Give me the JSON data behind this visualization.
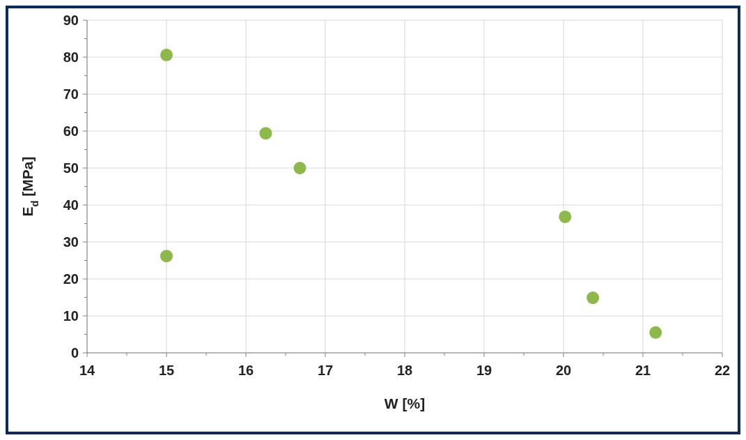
{
  "chart_data": {
    "type": "scatter",
    "xlabel": "W   [%]",
    "ylabel": "E$_{d}$   [MPa]",
    "x": [
      15.0,
      15.0,
      16.25,
      16.68,
      20.02,
      20.37,
      21.16
    ],
    "series": [
      {
        "color": "#8db94a",
        "values": [
          80.6,
          26.2,
          59.4,
          50.0,
          36.8,
          14.9,
          5.5
        ]
      }
    ],
    "xlim": [
      14,
      22
    ],
    "ylim": [
      0,
      90
    ],
    "xticks": [
      14,
      {
        "value": 14.5,
        "label": null
      },
      15,
      {
        "value": 15.5,
        "label": null
      },
      16,
      {
        "value": 16.5,
        "label": null
      },
      17,
      {
        "value": 17.5,
        "label": null
      },
      18,
      {
        "value": 18.5,
        "label": null
      },
      19,
      {
        "value": 19.5,
        "label": null
      },
      20,
      {
        "value": 20.5,
        "label": null
      },
      21,
      {
        "value": 21.5,
        "label": null
      },
      22
    ],
    "yticks": [
      0,
      {
        "value": 5,
        "label": null
      },
      10,
      {
        "value": 15,
        "label": null
      },
      20,
      {
        "value": 25,
        "label": null
      },
      30,
      {
        "value": 35,
        "label": null
      },
      40,
      {
        "value": 45,
        "label": null
      },
      50,
      {
        "value": 55,
        "label": null
      },
      60,
      {
        "value": 65,
        "label": null
      },
      70,
      {
        "value": 75,
        "label": null
      },
      80,
      {
        "value": 85,
        "label": null
      },
      90
    ],
    "grid": true,
    "marker": "circle"
  }
}
